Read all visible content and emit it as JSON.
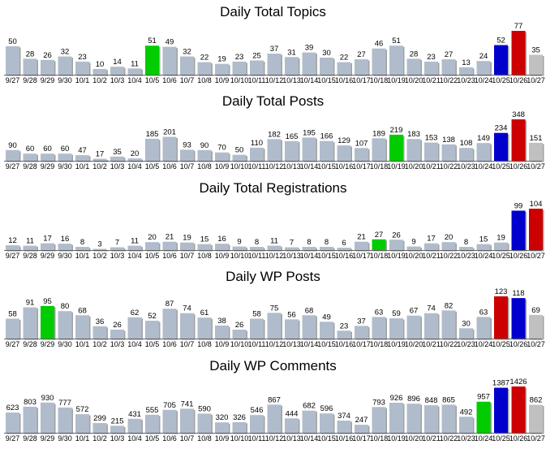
{
  "colors": {
    "default": "#b0bccb",
    "highlight_green": "#00cc00",
    "highlight_blue": "#0000cc",
    "highlight_red": "#cc0000",
    "last": "#c0c0c0"
  },
  "chart_data": [
    {
      "type": "bar",
      "title": "Daily Total Topics",
      "categories": [
        "9/27",
        "9/28",
        "9/29",
        "9/30",
        "10/1",
        "10/2",
        "10/3",
        "10/4",
        "10/5",
        "10/6",
        "10/7",
        "10/8",
        "10/9",
        "10/10",
        "10/11",
        "10/12",
        "10/13",
        "10/14",
        "10/15",
        "10/16",
        "10/17",
        "10/18",
        "10/19",
        "10/20",
        "10/21",
        "10/22",
        "10/23",
        "10/24",
        "10/25",
        "10/26",
        "10/27"
      ],
      "values": [
        50,
        28,
        26,
        32,
        23,
        10,
        14,
        11,
        51,
        49,
        32,
        22,
        19,
        23,
        25,
        37,
        31,
        39,
        30,
        22,
        27,
        46,
        51,
        28,
        23,
        27,
        13,
        24,
        52,
        77,
        35
      ],
      "ylim": [
        0,
        77
      ],
      "colors": {
        "8": "highlight_green",
        "28": "highlight_blue",
        "29": "highlight_red",
        "30": "last"
      }
    },
    {
      "type": "bar",
      "title": "Daily Total Posts",
      "categories": [
        "9/27",
        "9/28",
        "9/29",
        "9/30",
        "10/1",
        "10/2",
        "10/3",
        "10/4",
        "10/5",
        "10/6",
        "10/7",
        "10/8",
        "10/9",
        "10/10",
        "10/11",
        "10/12",
        "10/13",
        "10/14",
        "10/15",
        "10/16",
        "10/17",
        "10/18",
        "10/19",
        "10/20",
        "10/21",
        "10/22",
        "10/23",
        "10/24",
        "10/25",
        "10/26",
        "10/27"
      ],
      "values": [
        90,
        60,
        60,
        60,
        47,
        17,
        35,
        20,
        185,
        201,
        93,
        90,
        70,
        50,
        110,
        182,
        165,
        195,
        166,
        129,
        107,
        189,
        219,
        183,
        153,
        138,
        108,
        149,
        234,
        348,
        151
      ],
      "ylim": [
        0,
        348
      ],
      "colors": {
        "22": "highlight_green",
        "28": "highlight_blue",
        "29": "highlight_red",
        "30": "last"
      }
    },
    {
      "type": "bar",
      "title": "Daily Total Registrations",
      "categories": [
        "9/27",
        "9/28",
        "9/29",
        "9/30",
        "10/1",
        "10/2",
        "10/3",
        "10/4",
        "10/5",
        "10/6",
        "10/7",
        "10/8",
        "10/9",
        "10/10",
        "10/11",
        "10/12",
        "10/13",
        "10/14",
        "10/15",
        "10/16",
        "10/17",
        "10/18",
        "10/19",
        "10/20",
        "10/21",
        "10/22",
        "10/23",
        "10/24",
        "10/25",
        "10/26",
        "10/27"
      ],
      "values": [
        12,
        11,
        17,
        16,
        8,
        3,
        7,
        11,
        20,
        21,
        19,
        15,
        16,
        9,
        8,
        11,
        7,
        8,
        8,
        6,
        21,
        27,
        26,
        9,
        17,
        20,
        8,
        15,
        19,
        99,
        104
      ],
      "ylim": [
        0,
        104
      ],
      "colors": {
        "21": "highlight_green",
        "29": "highlight_blue",
        "30": "highlight_red"
      }
    },
    {
      "type": "bar",
      "title": "Daily WP Posts",
      "categories": [
        "9/27",
        "9/28",
        "9/29",
        "9/30",
        "10/1",
        "10/2",
        "10/3",
        "10/4",
        "10/5",
        "10/6",
        "10/7",
        "10/8",
        "10/9",
        "10/10",
        "10/11",
        "10/12",
        "10/13",
        "10/14",
        "10/15",
        "10/16",
        "10/17",
        "10/18",
        "10/19",
        "10/20",
        "10/21",
        "10/22",
        "10/23",
        "10/24",
        "10/25",
        "10/26",
        "10/27"
      ],
      "values": [
        58,
        91,
        95,
        80,
        68,
        36,
        26,
        62,
        52,
        87,
        74,
        61,
        38,
        26,
        58,
        75,
        56,
        68,
        49,
        23,
        37,
        63,
        59,
        67,
        74,
        82,
        30,
        63,
        123,
        118,
        69
      ],
      "ylim": [
        0,
        123
      ],
      "colors": {
        "2": "highlight_green",
        "28": "highlight_red",
        "29": "highlight_blue",
        "30": "last"
      }
    },
    {
      "type": "bar",
      "title": "Daily WP Comments",
      "categories": [
        "9/27",
        "9/28",
        "9/29",
        "9/30",
        "10/1",
        "10/2",
        "10/3",
        "10/4",
        "10/5",
        "10/6",
        "10/7",
        "10/8",
        "10/9",
        "10/10",
        "10/11",
        "10/12",
        "10/13",
        "10/14",
        "10/15",
        "10/16",
        "10/17",
        "10/18",
        "10/19",
        "10/20",
        "10/21",
        "10/22",
        "10/23",
        "10/24",
        "10/25",
        "10/26",
        "10/27"
      ],
      "values": [
        623,
        803,
        930,
        777,
        572,
        299,
        215,
        431,
        555,
        705,
        741,
        590,
        320,
        326,
        546,
        867,
        444,
        682,
        596,
        374,
        247,
        793,
        926,
        896,
        848,
        865,
        492,
        957,
        1387,
        1426,
        862
      ],
      "ylim": [
        0,
        1426
      ],
      "colors": {
        "27": "highlight_green",
        "28": "highlight_blue",
        "29": "highlight_red",
        "30": "last"
      }
    }
  ]
}
